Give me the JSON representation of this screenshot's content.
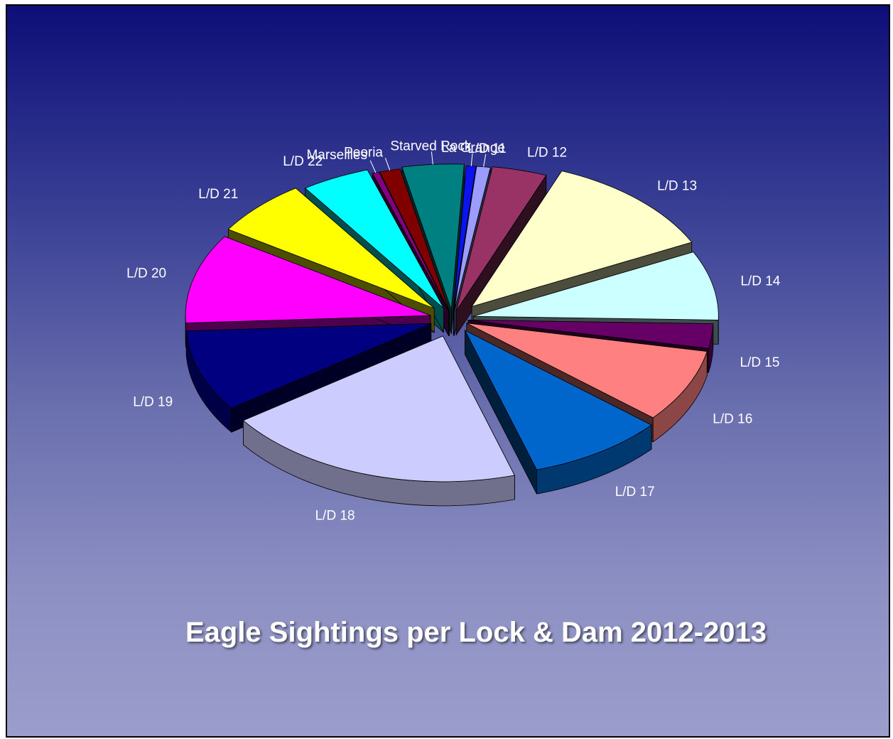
{
  "chart_data": {
    "type": "pie",
    "variant": "3d-exploded",
    "title": "Eagle Sightings per Lock & Dam 2012-2013",
    "slices": [
      {
        "label": "La Grange",
        "value": 0.7,
        "color": "#0a14f0"
      },
      {
        "label": "L/D 11",
        "value": 1.0,
        "color": "#9c9cff"
      },
      {
        "label": "L/D 12",
        "value": 4.0,
        "color": "#993366"
      },
      {
        "label": "L/D 13",
        "value": 13.0,
        "color": "#ffffcc"
      },
      {
        "label": "L/D 14",
        "value": 8.5,
        "color": "#ccffff"
      },
      {
        "label": "L/D 15",
        "value": 3.0,
        "color": "#660066"
      },
      {
        "label": "L/D 16",
        "value": 9.0,
        "color": "#ff8080"
      },
      {
        "label": "L/D 17",
        "value": 10.0,
        "color": "#0066cc"
      },
      {
        "label": "L/D 18",
        "value": 22.0,
        "color": "#ccccff"
      },
      {
        "label": "L/D 19",
        "value": 10.0,
        "color": "#000080"
      },
      {
        "label": "L/D 20",
        "value": 11.0,
        "color": "#ff00ff"
      },
      {
        "label": "L/D 21",
        "value": 7.0,
        "color": "#ffff00"
      },
      {
        "label": "L/D 22",
        "value": 5.0,
        "color": "#00ffff"
      },
      {
        "label": "Marseilles",
        "value": 0.5,
        "color": "#800080"
      },
      {
        "label": "Peoria",
        "value": 1.5,
        "color": "#800000"
      },
      {
        "label": "Starved Rock",
        "value": 4.5,
        "color": "#008080"
      }
    ]
  }
}
